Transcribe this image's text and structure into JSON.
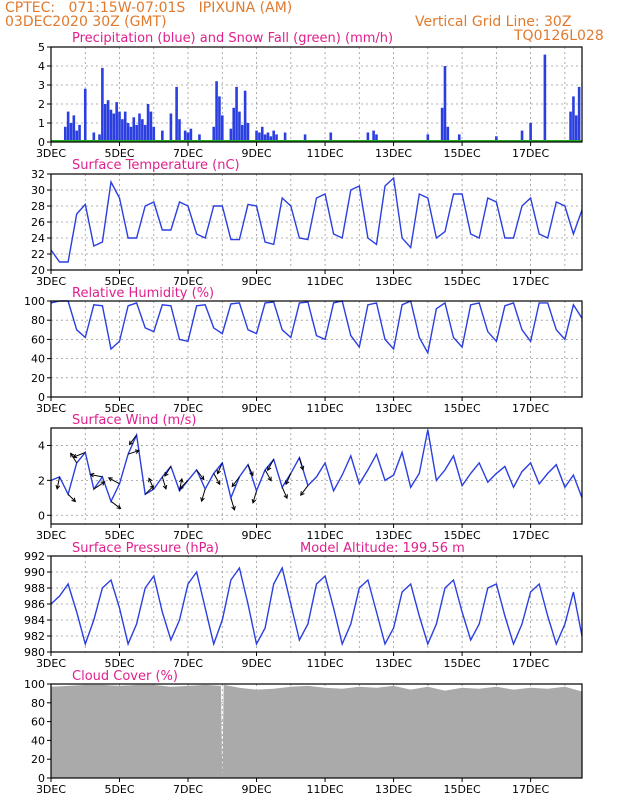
{
  "header": {
    "line1": "CPTEC:   071:15W-07:01S   IPIXUNA (AM)",
    "line2": "03DEC2020 30Z (GMT)",
    "grid_note": "Vertical Grid Line: 30Z",
    "code": "TQ0126L028"
  },
  "colors": {
    "header": "#e07a2e",
    "title": "#e0208c",
    "series": "#2b3fe0",
    "snow": "#22aa22",
    "cloud": "#aaaaaa",
    "wind_arrow": "#000000"
  },
  "x_labels": [
    "3DEC",
    "5DEC",
    "7DEC",
    "9DEC",
    "11DEC",
    "13DEC",
    "15DEC",
    "17DEC"
  ],
  "x_hours_range": [
    0,
    372
  ],
  "chart_data": [
    {
      "type": "bar",
      "title": "Precipitation (blue) and Snow Fall (green) (mm/h)",
      "ylim": [
        0,
        5
      ],
      "yticks": [
        0,
        1,
        2,
        3,
        4,
        5
      ],
      "grid": true,
      "series": [
        {
          "name": "Precipitation",
          "x": [
            10,
            12,
            14,
            16,
            18,
            20,
            24,
            30,
            34,
            36,
            38,
            40,
            42,
            44,
            46,
            48,
            50,
            52,
            54,
            56,
            58,
            60,
            62,
            64,
            66,
            68,
            70,
            72,
            78,
            84,
            88,
            90,
            94,
            96,
            98,
            104,
            114,
            116,
            118,
            120,
            126,
            128,
            130,
            132,
            134,
            136,
            138,
            144,
            146,
            148,
            150,
            152,
            154,
            156,
            158,
            164,
            178,
            196,
            222,
            226,
            228,
            264,
            274,
            276,
            278,
            286,
            312,
            330,
            336,
            346,
            364,
            366,
            368,
            370
          ],
          "values": [
            0.8,
            1.6,
            1.0,
            1.4,
            0.6,
            0.9,
            2.8,
            0.5,
            0.4,
            3.9,
            2.0,
            2.2,
            1.7,
            1.5,
            2.1,
            1.6,
            1.2,
            1.6,
            1.0,
            0.8,
            1.3,
            0.9,
            1.5,
            1.2,
            0.9,
            2.0,
            1.6,
            0.8,
            0.6,
            1.5,
            2.9,
            1.2,
            0.6,
            0.5,
            0.7,
            0.4,
            0.8,
            3.2,
            2.4,
            1.4,
            0.7,
            1.8,
            2.9,
            1.6,
            0.9,
            2.7,
            1.0,
            0.6,
            0.5,
            0.8,
            0.4,
            0.5,
            0.3,
            0.6,
            0.4,
            0.5,
            0.4,
            0.5,
            0.5,
            0.6,
            0.4,
            0.4,
            1.8,
            4.0,
            0.8,
            0.4,
            0.3,
            0.6,
            1.0,
            4.6,
            1.6,
            2.4,
            1.4,
            2.9
          ]
        },
        {
          "name": "Snow Fall",
          "x": [
            0,
            372
          ],
          "values": [
            0,
            0
          ]
        }
      ]
    },
    {
      "type": "line",
      "title": "Surface Temperature (nC)",
      "ylim": [
        20,
        32
      ],
      "yticks": [
        20,
        22,
        24,
        26,
        28,
        30,
        32
      ],
      "grid": true,
      "series": [
        {
          "name": "Temperature",
          "x": [
            0,
            6,
            12,
            18,
            24,
            30,
            36,
            42,
            48,
            54,
            60,
            66,
            72,
            78,
            84,
            90,
            96,
            102,
            108,
            114,
            120,
            126,
            132,
            138,
            144,
            150,
            156,
            162,
            168,
            174,
            180,
            186,
            192,
            198,
            204,
            210,
            216,
            222,
            228,
            234,
            240,
            246,
            252,
            258,
            264,
            270,
            276,
            282,
            288,
            294,
            300,
            306,
            312,
            318,
            324,
            330,
            336,
            342,
            348,
            354,
            360,
            366,
            372
          ],
          "values": [
            22.5,
            21.0,
            21.0,
            27.0,
            28.2,
            23.0,
            23.5,
            31.0,
            29.0,
            24.0,
            24.0,
            28.0,
            28.5,
            25.0,
            25.0,
            28.5,
            28.0,
            24.5,
            24.0,
            28.0,
            28.0,
            23.8,
            23.8,
            28.2,
            28.0,
            23.5,
            23.2,
            29.0,
            28.0,
            24.0,
            23.8,
            29.0,
            29.5,
            24.5,
            24.0,
            30.0,
            30.5,
            24.0,
            23.2,
            30.5,
            31.5,
            24.0,
            22.8,
            29.5,
            29.0,
            24.0,
            24.8,
            29.5,
            29.5,
            24.5,
            24.0,
            29.0,
            28.5,
            24.0,
            24.0,
            28.0,
            29.0,
            24.5,
            24.0,
            28.5,
            28.0,
            24.5,
            27.5
          ]
        }
      ]
    },
    {
      "type": "line",
      "title": "Relative Humidity (%)",
      "ylim": [
        0,
        100
      ],
      "yticks": [
        0,
        20,
        40,
        60,
        80,
        100
      ],
      "grid": true,
      "series": [
        {
          "name": "Relative Humidity",
          "x": [
            0,
            6,
            12,
            18,
            24,
            30,
            36,
            42,
            48,
            54,
            60,
            66,
            72,
            78,
            84,
            90,
            96,
            102,
            108,
            114,
            120,
            126,
            132,
            138,
            144,
            150,
            156,
            162,
            168,
            174,
            180,
            186,
            192,
            198,
            204,
            210,
            216,
            222,
            228,
            234,
            240,
            246,
            252,
            258,
            264,
            270,
            276,
            282,
            288,
            294,
            300,
            306,
            312,
            318,
            324,
            330,
            336,
            342,
            348,
            354,
            360,
            366,
            372
          ],
          "values": [
            98,
            100,
            100,
            70,
            62,
            96,
            95,
            50,
            58,
            95,
            98,
            72,
            68,
            96,
            95,
            60,
            58,
            95,
            96,
            72,
            66,
            97,
            98,
            70,
            66,
            98,
            99,
            70,
            62,
            98,
            99,
            64,
            60,
            98,
            100,
            64,
            52,
            96,
            98,
            60,
            50,
            96,
            100,
            62,
            46,
            92,
            98,
            62,
            52,
            96,
            98,
            68,
            58,
            95,
            98,
            70,
            58,
            98,
            98,
            70,
            60,
            96,
            82
          ]
        }
      ]
    },
    {
      "type": "line",
      "title": "Surface Wind (m/s)",
      "ylim": [
        -0.5,
        5
      ],
      "yticks": [
        0,
        2,
        4
      ],
      "grid": true,
      "series": [
        {
          "name": "Wind Speed",
          "x": [
            0,
            6,
            12,
            18,
            24,
            30,
            36,
            42,
            48,
            54,
            60,
            66,
            72,
            78,
            84,
            90,
            96,
            102,
            108,
            114,
            120,
            126,
            132,
            138,
            144,
            150,
            156,
            162,
            168,
            174,
            180,
            186,
            192,
            198,
            204,
            210,
            216,
            222,
            228,
            234,
            240,
            246,
            252,
            258,
            264,
            270,
            276,
            282,
            288,
            294,
            300,
            306,
            312,
            318,
            324,
            330,
            336,
            342,
            348,
            354,
            360,
            366,
            372
          ],
          "values": [
            2.0,
            2.2,
            1.2,
            3.0,
            3.6,
            1.5,
            2.2,
            0.8,
            1.8,
            3.5,
            4.6,
            1.2,
            1.5,
            2.2,
            2.8,
            1.4,
            2.0,
            2.6,
            1.5,
            2.4,
            3.0,
            1.0,
            2.2,
            2.9,
            1.4,
            2.6,
            3.2,
            1.6,
            2.4,
            3.3,
            1.7,
            2.2,
            3.0,
            1.4,
            2.3,
            3.4,
            1.8,
            2.6,
            3.5,
            2.0,
            2.3,
            3.6,
            1.6,
            2.4,
            4.9,
            2.0,
            2.6,
            3.4,
            1.7,
            2.4,
            3.0,
            1.9,
            2.4,
            2.8,
            1.6,
            2.5,
            3.0,
            1.8,
            2.4,
            2.9,
            1.6,
            2.3,
            1.0
          ]
        }
      ],
      "arrows": [
        {
          "x": 6,
          "u": -0.2,
          "v": -1.0
        },
        {
          "x": 12,
          "u": 0.6,
          "v": -0.6
        },
        {
          "x": 18,
          "u": -0.5,
          "v": 0.8
        },
        {
          "x": 24,
          "u": -1.0,
          "v": -0.4
        },
        {
          "x": 30,
          "u": 0.9,
          "v": 0.6
        },
        {
          "x": 36,
          "u": -1.0,
          "v": 0.2
        },
        {
          "x": 42,
          "u": 0.8,
          "v": -0.6
        },
        {
          "x": 48,
          "u": -0.9,
          "v": 0.5
        },
        {
          "x": 54,
          "u": 0.9,
          "v": 0.3
        },
        {
          "x": 60,
          "u": -0.6,
          "v": -0.8
        },
        {
          "x": 66,
          "u": 0.7,
          "v": 0.7
        },
        {
          "x": 72,
          "u": -0.4,
          "v": 0.9
        },
        {
          "x": 78,
          "u": 0.3,
          "v": -1.0
        },
        {
          "x": 84,
          "u": -0.5,
          "v": -0.8
        },
        {
          "x": 90,
          "u": 0.2,
          "v": 1.0
        },
        {
          "x": 96,
          "u": -0.7,
          "v": -0.7
        },
        {
          "x": 102,
          "u": 0.6,
          "v": -0.8
        },
        {
          "x": 108,
          "u": -0.3,
          "v": -1.0
        },
        {
          "x": 114,
          "u": 0.5,
          "v": -0.9
        },
        {
          "x": 120,
          "u": -0.4,
          "v": -0.9
        },
        {
          "x": 126,
          "u": 0.3,
          "v": -1.0
        },
        {
          "x": 132,
          "u": -0.6,
          "v": -0.8
        },
        {
          "x": 138,
          "u": 0.4,
          "v": -0.9
        },
        {
          "x": 144,
          "u": -0.3,
          "v": -1.0
        },
        {
          "x": 150,
          "u": 0.5,
          "v": -0.9
        },
        {
          "x": 156,
          "u": -0.5,
          "v": -0.9
        },
        {
          "x": 162,
          "u": 0.4,
          "v": -0.9
        },
        {
          "x": 168,
          "u": -0.4,
          "v": -0.9
        },
        {
          "x": 174,
          "u": 0.3,
          "v": -1.0
        },
        {
          "x": 180,
          "u": -0.6,
          "v": -0.8
        }
      ]
    },
    {
      "type": "line",
      "title": "Surface Pressure (hPa)",
      "subtitle": "Model Altitude: 199.56 m",
      "ylim": [
        980,
        992
      ],
      "yticks": [
        980,
        982,
        984,
        986,
        988,
        990,
        992
      ],
      "grid": true,
      "series": [
        {
          "name": "Surface Pressure",
          "x": [
            0,
            6,
            12,
            18,
            24,
            30,
            36,
            42,
            48,
            54,
            60,
            66,
            72,
            78,
            84,
            90,
            96,
            102,
            108,
            114,
            120,
            126,
            132,
            138,
            144,
            150,
            156,
            162,
            168,
            174,
            180,
            186,
            192,
            198,
            204,
            210,
            216,
            222,
            228,
            234,
            240,
            246,
            252,
            258,
            264,
            270,
            276,
            282,
            288,
            294,
            300,
            306,
            312,
            318,
            324,
            330,
            336,
            342,
            348,
            354,
            360,
            366,
            372
          ],
          "values": [
            986.0,
            987.0,
            988.5,
            985.0,
            981.0,
            984.0,
            988.0,
            989.0,
            985.5,
            981.0,
            983.5,
            988.0,
            989.5,
            985.0,
            981.5,
            984.0,
            988.5,
            990.0,
            985.5,
            981.0,
            984.0,
            989.0,
            990.5,
            986.0,
            981.0,
            983.0,
            988.5,
            990.5,
            986.0,
            981.5,
            983.5,
            988.5,
            989.5,
            985.5,
            981.0,
            983.5,
            988.0,
            989.0,
            985.0,
            981.0,
            983.0,
            987.5,
            988.5,
            984.5,
            981.0,
            983.5,
            988.0,
            989.0,
            985.0,
            981.5,
            983.5,
            988.0,
            988.5,
            984.5,
            981.0,
            983.5,
            987.5,
            988.5,
            984.5,
            981.0,
            983.5,
            987.5,
            982.0
          ]
        }
      ]
    },
    {
      "type": "area",
      "title": "Cloud Cover (%)",
      "ylim": [
        0,
        100
      ],
      "yticks": [
        0,
        20,
        40,
        60,
        80,
        100
      ],
      "grid": true,
      "series": [
        {
          "name": "Cloud Cover",
          "x": [
            0,
            12,
            24,
            36,
            48,
            60,
            72,
            84,
            96,
            108,
            119,
            120,
            121,
            132,
            144,
            156,
            168,
            180,
            192,
            204,
            216,
            228,
            240,
            252,
            264,
            276,
            288,
            300,
            312,
            324,
            336,
            348,
            360,
            372
          ],
          "values": [
            97,
            98,
            99,
            99,
            98,
            99,
            99,
            97,
            98,
            99,
            98,
            0,
            99,
            96,
            94,
            95,
            97,
            98,
            96,
            95,
            97,
            96,
            98,
            94,
            97,
            93,
            96,
            95,
            97,
            94,
            96,
            95,
            97,
            92
          ]
        }
      ]
    }
  ]
}
